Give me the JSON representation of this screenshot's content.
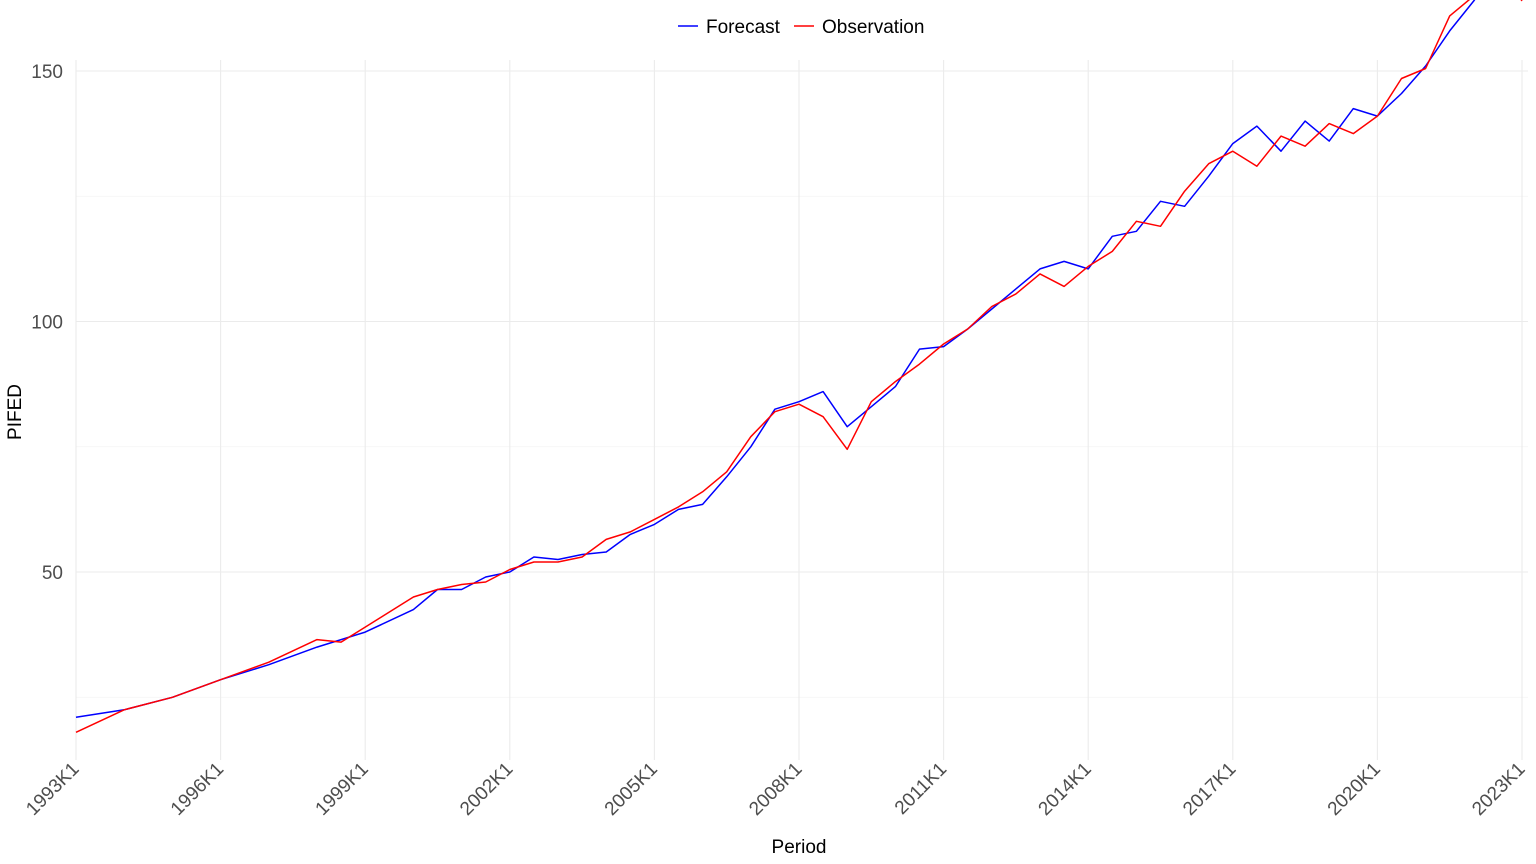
{
  "chart_data": {
    "type": "line",
    "title": "",
    "xlabel": "Period",
    "ylabel": "PIFED",
    "x_tick_labels": [
      "1993K1",
      "1996K1",
      "1999K1",
      "2002K1",
      "2005K1",
      "2008K1",
      "2011K1",
      "2014K1",
      "2017K1",
      "2020K1",
      "2023K1"
    ],
    "y_ticks": [
      50,
      100,
      150
    ],
    "y_tick_labels": [
      "50",
      "100",
      "150"
    ],
    "ylim": [
      12,
      152
    ],
    "xlim": [
      "1993K1",
      "2023K1"
    ],
    "grid": true,
    "legend_position": "top",
    "legend": [
      "Forecast",
      "Observation"
    ],
    "series": [
      {
        "name": "Forecast",
        "color": "#0000ff",
        "keypoints": [
          [
            "1993K1",
            21
          ],
          [
            "1994K1",
            22.5
          ],
          [
            "1995K1",
            25
          ],
          [
            "1996K1",
            28.5
          ],
          [
            "1997K1",
            31.5
          ],
          [
            "1998K1",
            35
          ],
          [
            "1998K3",
            36.5
          ],
          [
            "1999K1",
            38
          ],
          [
            "2000K1",
            42.5
          ],
          [
            "2000K3",
            46.5
          ],
          [
            "2001K1",
            46.5
          ],
          [
            "2001K3",
            49
          ],
          [
            "2002K1",
            50
          ],
          [
            "2002K3",
            53
          ],
          [
            "2003K1",
            52.5
          ],
          [
            "2003K3",
            53.5
          ],
          [
            "2004K1",
            54
          ],
          [
            "2004K3",
            57.5
          ],
          [
            "2005K1",
            59.5
          ],
          [
            "2005K3",
            62.5
          ],
          [
            "2006K1",
            63.5
          ],
          [
            "2006K3",
            69
          ],
          [
            "2007K1",
            75
          ],
          [
            "2007K3",
            82.5
          ],
          [
            "2008K1",
            84
          ],
          [
            "2008K3",
            86
          ],
          [
            "2009K1",
            79
          ],
          [
            "2009K3",
            83
          ],
          [
            "2010K1",
            87
          ],
          [
            "2010K3",
            94.5
          ],
          [
            "2011K1",
            95
          ],
          [
            "2011K3",
            98.5
          ],
          [
            "2012K1",
            102.5
          ],
          [
            "2012K3",
            106.5
          ],
          [
            "2013K1",
            110.5
          ],
          [
            "2013K3",
            112
          ],
          [
            "2014K1",
            110.5
          ],
          [
            "2014K3",
            117
          ],
          [
            "2015K1",
            118
          ],
          [
            "2015K3",
            124
          ],
          [
            "2016K1",
            123
          ],
          [
            "2016K3",
            129
          ],
          [
            "2017K1",
            135.5
          ],
          [
            "2017K3",
            139
          ],
          [
            "2018K1",
            134
          ],
          [
            "2018K3",
            140
          ],
          [
            "2019K1",
            136
          ],
          [
            "2019K3",
            142.5
          ],
          [
            "2020K1",
            141
          ],
          [
            "2020K3",
            145.5
          ],
          [
            "2021K1",
            151
          ],
          [
            "2021K3",
            158
          ],
          [
            "2022K1",
            164
          ],
          [
            "2022K3",
            171
          ],
          [
            "2023K1",
            165
          ]
        ]
      },
      {
        "name": "Observation",
        "color": "#ff0000",
        "keypoints": [
          [
            "1993K1",
            18
          ],
          [
            "1994K1",
            22.5
          ],
          [
            "1995K1",
            25
          ],
          [
            "1996K1",
            28.5
          ],
          [
            "1997K1",
            32
          ],
          [
            "1998K1",
            36.5
          ],
          [
            "1998K3",
            36
          ],
          [
            "1999K1",
            39
          ],
          [
            "2000K1",
            45
          ],
          [
            "2000K3",
            46.5
          ],
          [
            "2001K1",
            47.5
          ],
          [
            "2001K3",
            48
          ],
          [
            "2002K1",
            50.5
          ],
          [
            "2002K3",
            52
          ],
          [
            "2003K1",
            52
          ],
          [
            "2003K3",
            53
          ],
          [
            "2004K1",
            56.5
          ],
          [
            "2004K3",
            58
          ],
          [
            "2005K1",
            60.5
          ],
          [
            "2005K3",
            63
          ],
          [
            "2006K1",
            66
          ],
          [
            "2006K3",
            70
          ],
          [
            "2007K1",
            77
          ],
          [
            "2007K3",
            82
          ],
          [
            "2008K1",
            83.5
          ],
          [
            "2008K3",
            81
          ],
          [
            "2009K1",
            74.5
          ],
          [
            "2009K3",
            84
          ],
          [
            "2010K1",
            88
          ],
          [
            "2010K3",
            91.5
          ],
          [
            "2011K1",
            95.5
          ],
          [
            "2011K3",
            98.5
          ],
          [
            "2012K1",
            103
          ],
          [
            "2012K3",
            105.5
          ],
          [
            "2013K1",
            109.5
          ],
          [
            "2013K3",
            107
          ],
          [
            "2014K1",
            111
          ],
          [
            "2014K3",
            114
          ],
          [
            "2015K1",
            120
          ],
          [
            "2015K3",
            119
          ],
          [
            "2016K1",
            126
          ],
          [
            "2016K3",
            131.5
          ],
          [
            "2017K1",
            134
          ],
          [
            "2017K3",
            131
          ],
          [
            "2018K1",
            137
          ],
          [
            "2018K3",
            135
          ],
          [
            "2019K1",
            139.5
          ],
          [
            "2019K3",
            137.5
          ],
          [
            "2020K1",
            141
          ],
          [
            "2020K3",
            148.5
          ],
          [
            "2021K1",
            150.5
          ],
          [
            "2021K3",
            161
          ],
          [
            "2022K1",
            165
          ],
          [
            "2022K3",
            171
          ],
          [
            "2023K1",
            164
          ]
        ]
      }
    ]
  }
}
